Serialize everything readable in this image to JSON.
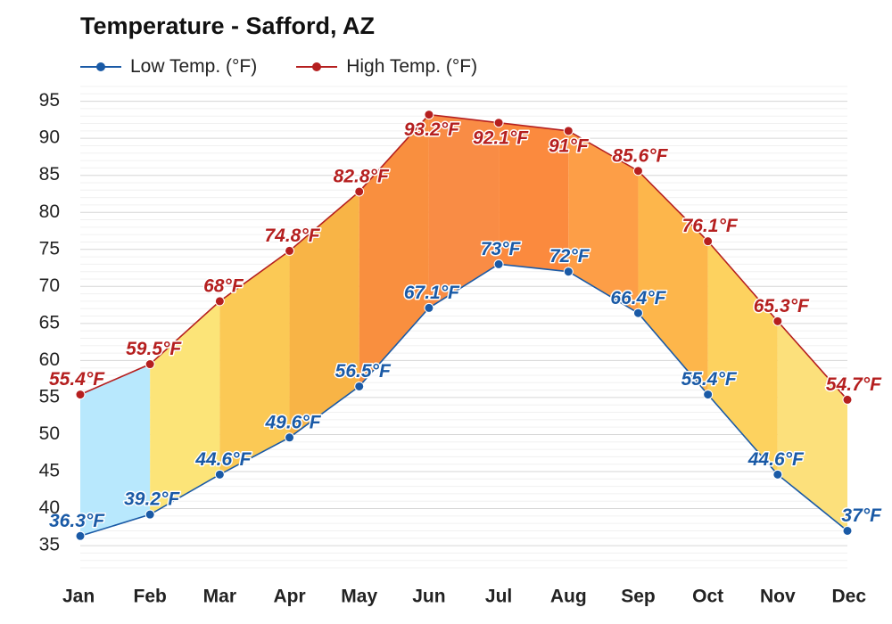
{
  "chart_data": {
    "type": "line",
    "title": "Temperature - Safford, AZ",
    "categories": [
      "Jan",
      "Feb",
      "Mar",
      "Apr",
      "May",
      "Jun",
      "Jul",
      "Aug",
      "Sep",
      "Oct",
      "Nov",
      "Dec"
    ],
    "series": [
      {
        "name": "Low Temp. (°F)",
        "color": "#1a5aa6",
        "values": [
          36.3,
          39.2,
          44.6,
          49.6,
          56.5,
          67.1,
          73,
          72,
          66.4,
          55.4,
          44.6,
          37
        ],
        "labels": [
          "36.3°F",
          "39.2°F",
          "44.6°F",
          "49.6°F",
          "56.5°F",
          "67.1°F",
          "73°F",
          "72°F",
          "66.4°F",
          "55.4°F",
          "44.6°F",
          "37°F"
        ]
      },
      {
        "name": "High Temp. (°F)",
        "color": "#b51f1f",
        "values": [
          55.4,
          59.5,
          68,
          74.8,
          82.8,
          93.2,
          92.1,
          91,
          85.6,
          76.1,
          65.3,
          54.7
        ],
        "labels": [
          "55.4°F",
          "59.5°F",
          "68°F",
          "74.8°F",
          "82.8°F",
          "93.2°F",
          "92.1°F",
          "91°F",
          "85.6°F",
          "76.1°F",
          "65.3°F",
          "54.7°F"
        ]
      }
    ],
    "band_colors": [
      "#b8e8fd",
      "#fce478",
      "#fbc955",
      "#f8b446",
      "#f98f3f",
      "#f98c45",
      "#fb8a3e",
      "#fd9e47",
      "#fdb64b",
      "#fdd25f",
      "#fce07b",
      "#a9e4f9"
    ],
    "y_ticks": [
      35,
      40,
      45,
      50,
      55,
      60,
      65,
      70,
      75,
      80,
      85,
      90,
      95
    ],
    "ylim": [
      32,
      97
    ],
    "grid": true,
    "legend_position": "top-left"
  }
}
